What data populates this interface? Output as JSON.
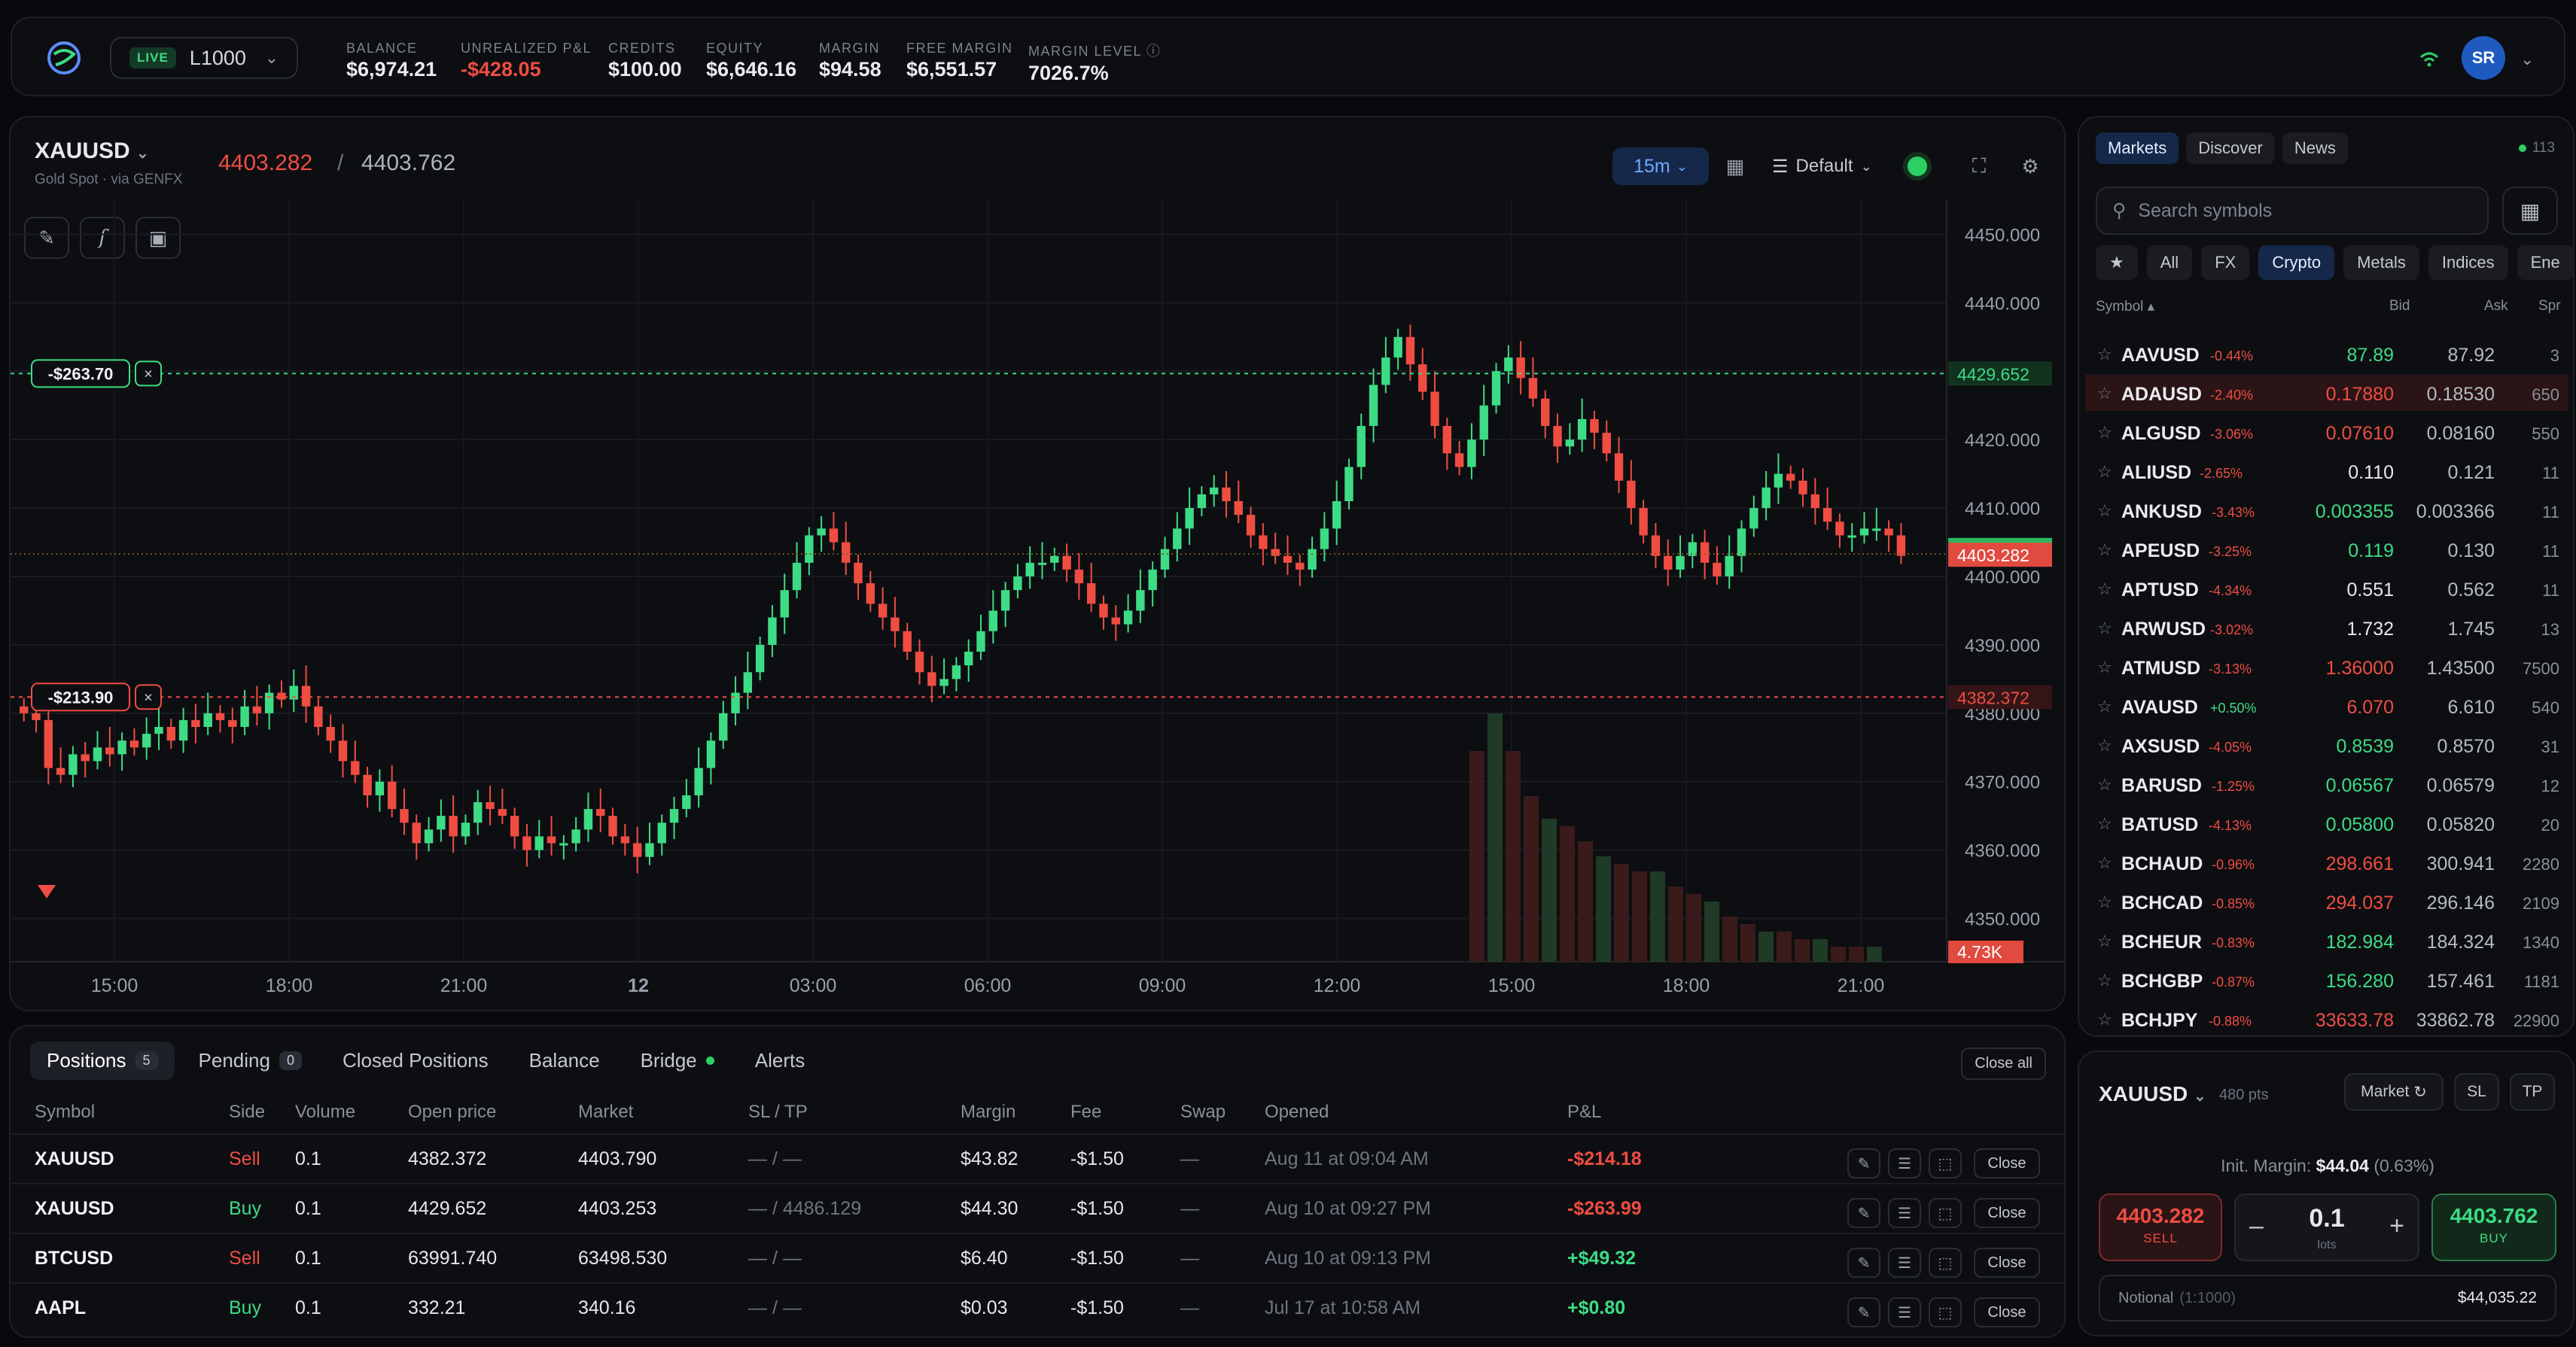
{
  "header": {
    "live_badge": "LIVE",
    "account": "L1000",
    "stats": [
      {
        "label": "BALANCE",
        "value": "$6,974.21",
        "neg": false
      },
      {
        "label": "UNREALIZED P&L",
        "value": "-$428.05",
        "neg": true
      },
      {
        "label": "CREDITS",
        "value": "$100.00",
        "neg": false
      },
      {
        "label": "EQUITY",
        "value": "$6,646.16",
        "neg": false
      },
      {
        "label": "MARGIN",
        "value": "$94.58",
        "neg": false
      },
      {
        "label": "FREE MARGIN",
        "value": "$6,551.57",
        "neg": false
      },
      {
        "label": "MARGIN LEVEL ⓘ",
        "value": "7026.7%",
        "neg": false
      }
    ],
    "avatar": "SR"
  },
  "chart": {
    "symbol": "XAUUSD",
    "subtitle": "Gold Spot · via GENFX",
    "bid": "4403.282",
    "ask": "4403.762",
    "timeframe": "15m",
    "layout": "Default",
    "y_ticks": [
      "4450.000",
      "4440.000",
      "4430.000",
      "4420.000",
      "4410.000",
      "4400.000",
      "4390.000",
      "4380.000",
      "4370.000",
      "4360.000",
      "4350.000"
    ],
    "x_ticks": [
      "15:00",
      "18:00",
      "21:00",
      "12",
      "03:00",
      "06:00",
      "09:00",
      "12:00",
      "15:00",
      "18:00",
      "21:00"
    ],
    "ask_tag": "4403.762",
    "bid_tag": "4403.282",
    "pos_line_1": {
      "price": "4429.652",
      "pnl": "-$263.70",
      "color": "#3ddc84"
    },
    "pos_line_2": {
      "price": "4382.372",
      "pnl": "-$213.90",
      "color": "#ef4d42"
    },
    "volume_tag": "4.73K"
  },
  "chart_data": {
    "type": "candlestick",
    "ylim": [
      4345,
      4455
    ],
    "closes": [
      4380,
      4379,
      4372,
      4371,
      4374,
      4373,
      4375,
      4374,
      4376,
      4375,
      4377,
      4378,
      4376,
      4379,
      4378,
      4380,
      4379,
      4378,
      4381,
      4380,
      4383,
      4382,
      4384,
      4381,
      4378,
      4376,
      4373,
      4371,
      4368,
      4370,
      4366,
      4364,
      4361,
      4363,
      4365,
      4362,
      4364,
      4367,
      4366,
      4365,
      4362,
      4360,
      4362,
      4361,
      4361,
      4363,
      4366,
      4365,
      4362,
      4361,
      4359,
      4361,
      4364,
      4366,
      4368,
      4372,
      4376,
      4380,
      4383,
      4386,
      4390,
      4394,
      4398,
      4402,
      4406,
      4407,
      4405,
      4402,
      4399,
      4396,
      4394,
      4392,
      4389,
      4386,
      4384,
      4385,
      4387,
      4389,
      4392,
      4395,
      4398,
      4400,
      4402,
      4402,
      4403,
      4401,
      4399,
      4396,
      4394,
      4393,
      4395,
      4398,
      4401,
      4404,
      4407,
      4410,
      4412,
      4413,
      4411,
      4409,
      4406,
      4404,
      4403,
      4402,
      4401,
      4404,
      4407,
      4411,
      4416,
      4422,
      4428,
      4432,
      4435,
      4431,
      4427,
      4422,
      4418,
      4416,
      4420,
      4425,
      4430,
      4432,
      4429,
      4426,
      4422,
      4419,
      4420,
      4423,
      4421,
      4418,
      4414,
      4410,
      4406,
      4403,
      4401,
      4403,
      4405,
      4402,
      4400,
      4403,
      4407,
      4410,
      4413,
      4415,
      4414,
      4412,
      4410,
      4408,
      4406,
      4406,
      4407,
      4407,
      4406,
      4403
    ],
    "volumes": [
      0.28,
      0.33,
      0.28,
      0.22,
      0.19,
      0.18,
      0.16,
      0.14,
      0.13,
      0.12,
      0.12,
      0.1,
      0.09,
      0.08,
      0.06,
      0.05,
      0.04,
      0.04,
      0.03,
      0.03,
      0.02,
      0.02,
      0.02
    ]
  },
  "chart_tools": [
    "pencil-icon",
    "function-icon",
    "robot-icon"
  ],
  "markets": {
    "tabs": [
      "Markets",
      "Discover",
      "News"
    ],
    "count": "113",
    "search_placeholder": "Search symbols",
    "filters": [
      "★",
      "All",
      "FX",
      "Crypto",
      "Metals",
      "Indices",
      "Ene"
    ],
    "headers": {
      "symbol": "Symbol ▴",
      "bid": "Bid",
      "ask": "Ask",
      "spread": "Spr"
    },
    "rows": [
      {
        "sym": "AAVUSD",
        "chg": "-0.44%",
        "bid": "87.89",
        "ask": "87.92",
        "spr": "3",
        "bc": "up"
      },
      {
        "sym": "ADAUSD",
        "chg": "-2.40%",
        "bid": "0.17880",
        "ask": "0.18530",
        "spr": "650",
        "bc": "dn",
        "hl": true
      },
      {
        "sym": "ALGUSD",
        "chg": "-3.06%",
        "bid": "0.07610",
        "ask": "0.08160",
        "spr": "550",
        "bc": "dn"
      },
      {
        "sym": "ALIUSD",
        "chg": "-2.65%",
        "bid": "0.110",
        "ask": "0.121",
        "spr": "11",
        "bc": "neu"
      },
      {
        "sym": "ANKUSD",
        "chg": "-3.43%",
        "bid": "0.003355",
        "ask": "0.003366",
        "spr": "11",
        "bc": "up"
      },
      {
        "sym": "APEUSD",
        "chg": "-3.25%",
        "bid": "0.119",
        "ask": "0.130",
        "spr": "11",
        "bc": "up"
      },
      {
        "sym": "APTUSD",
        "chg": "-4.34%",
        "bid": "0.551",
        "ask": "0.562",
        "spr": "11",
        "bc": "neu"
      },
      {
        "sym": "ARWUSD",
        "chg": "-3.02%",
        "bid": "1.732",
        "ask": "1.745",
        "spr": "13",
        "bc": "neu"
      },
      {
        "sym": "ATMUSD",
        "chg": "-3.13%",
        "bid": "1.36000",
        "ask": "1.43500",
        "spr": "7500",
        "bc": "dn"
      },
      {
        "sym": "AVAUSD",
        "chg": "+0.50%",
        "bid": "6.070",
        "ask": "6.610",
        "spr": "540",
        "bc": "dn"
      },
      {
        "sym": "AXSUSD",
        "chg": "-4.05%",
        "bid": "0.8539",
        "ask": "0.8570",
        "spr": "31",
        "bc": "up"
      },
      {
        "sym": "BARUSD",
        "chg": "-1.25%",
        "bid": "0.06567",
        "ask": "0.06579",
        "spr": "12",
        "bc": "up"
      },
      {
        "sym": "BATUSD",
        "chg": "-4.13%",
        "bid": "0.05800",
        "ask": "0.05820",
        "spr": "20",
        "bc": "up"
      },
      {
        "sym": "BCHAUD",
        "chg": "-0.96%",
        "bid": "298.661",
        "ask": "300.941",
        "spr": "2280",
        "bc": "dn"
      },
      {
        "sym": "BCHCAD",
        "chg": "-0.85%",
        "bid": "294.037",
        "ask": "296.146",
        "spr": "2109",
        "bc": "dn"
      },
      {
        "sym": "BCHEUR",
        "chg": "-0.83%",
        "bid": "182.984",
        "ask": "184.324",
        "spr": "1340",
        "bc": "up"
      },
      {
        "sym": "BCHGBP",
        "chg": "-0.87%",
        "bid": "156.280",
        "ask": "157.461",
        "spr": "1181",
        "bc": "up"
      },
      {
        "sym": "BCHJPY",
        "chg": "-0.88%",
        "bid": "33633.78",
        "ask": "33862.78",
        "spr": "22900",
        "bc": "dn"
      }
    ]
  },
  "order": {
    "symbol": "XAUUSD",
    "pts": "480 pts",
    "mode": "Market",
    "sl": "SL",
    "tp": "TP",
    "margin_label": "Init. Margin:",
    "margin_value": "$44.04",
    "margin_pct": "(0.63%)",
    "sell_price": "4403.282",
    "sell_label": "SELL",
    "buy_price": "4403.762",
    "buy_label": "BUY",
    "qty": "0.1",
    "qty_unit": "lots",
    "notional_label": "Notional",
    "leverage": "(1:1000)",
    "notional_value": "$44,035.22"
  },
  "positions": {
    "tabs": [
      {
        "label": "Positions",
        "badge": "5"
      },
      {
        "label": "Pending",
        "badge": "0"
      },
      {
        "label": "Closed Positions",
        "badge": null
      },
      {
        "label": "Balance",
        "badge": null
      },
      {
        "label": "Bridge",
        "badge": null
      },
      {
        "label": "Alerts",
        "badge": null
      }
    ],
    "close_all": "Close all",
    "headers": [
      "Symbol",
      "Side",
      "Volume",
      "Open price",
      "Market",
      "SL / TP",
      "Margin",
      "Fee",
      "Swap",
      "Opened",
      "P&L"
    ],
    "rows": [
      {
        "sym": "XAUUSD",
        "side": "Sell",
        "vol": "0.1",
        "open": "4382.372",
        "mkt": "4403.790",
        "sltp": "— / —",
        "margin": "$43.82",
        "fee": "-$1.50",
        "swap": "—",
        "opened": "Aug 11 at 09:04 AM",
        "pnl": "-$214.18"
      },
      {
        "sym": "XAUUSD",
        "side": "Buy",
        "vol": "0.1",
        "open": "4429.652",
        "mkt": "4403.253",
        "sltp": "— / 4486.129",
        "margin": "$44.30",
        "fee": "-$1.50",
        "swap": "—",
        "opened": "Aug 10 at 09:27 PM",
        "pnl": "-$263.99"
      },
      {
        "sym": "BTCUSD",
        "side": "Sell",
        "vol": "0.1",
        "open": "63991.740",
        "mkt": "63498.530",
        "sltp": "— / —",
        "margin": "$6.40",
        "fee": "-$1.50",
        "swap": "—",
        "opened": "Aug 10 at 09:13 PM",
        "pnl": "+$49.32"
      },
      {
        "sym": "AAPL",
        "side": "Buy",
        "vol": "0.1",
        "open": "332.21",
        "mkt": "340.16",
        "sltp": "— / —",
        "margin": "$0.03",
        "fee": "-$1.50",
        "swap": "—",
        "opened": "Jul 17 at 10:58 AM",
        "pnl": "+$0.80"
      }
    ],
    "close_label": "Close"
  },
  "colors": {
    "up": "#3ddc84",
    "down": "#ef4d42",
    "accent": "#6fa8ff"
  }
}
